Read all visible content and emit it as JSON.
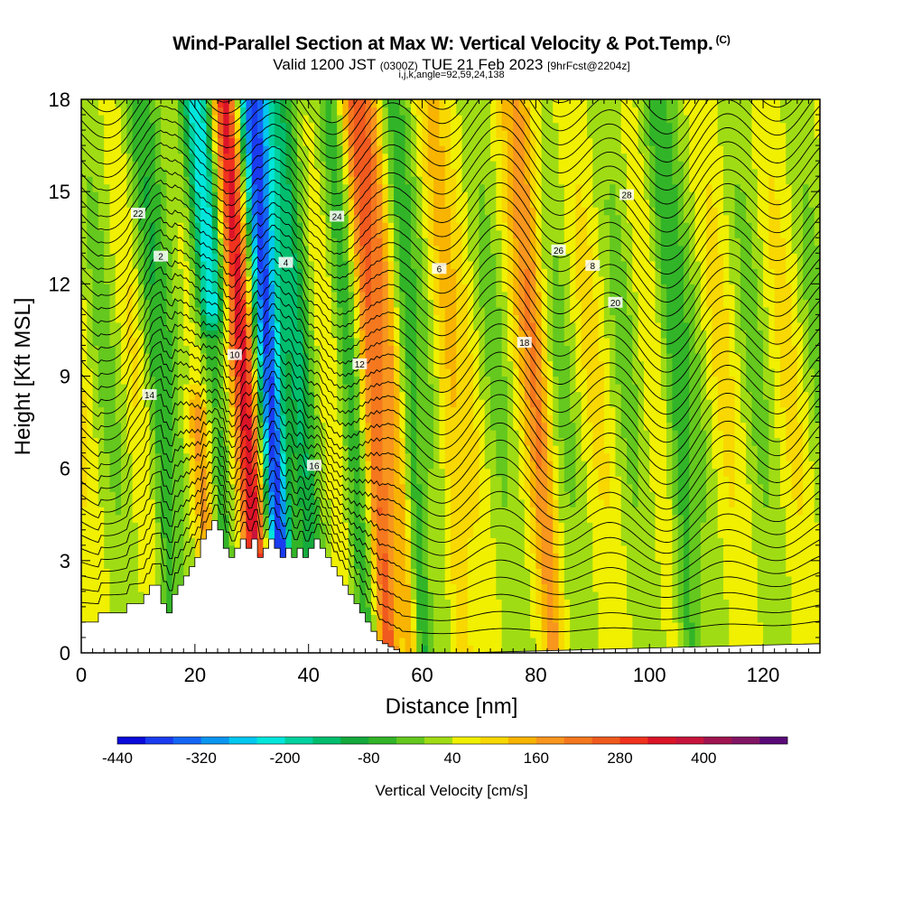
{
  "header": {
    "title": "Wind-Parallel Section at Max W: Vertical Velocity & Pot.Temp.",
    "title_suffix": "(C)",
    "subtitle_valid": "Valid 1200 JST",
    "subtitle_utc": "(0300Z)",
    "subtitle_date": "TUE 21 Feb 2023",
    "subtitle_fcst": "[9hrFcst@2204z]",
    "indices": "i,j,k,angle=92,59,24,138"
  },
  "colorbar": {
    "label": "Vertical Velocity [cm/s]",
    "tick_labels": [
      "-440",
      "-320",
      "-200",
      "-80",
      "40",
      "160",
      "280",
      "400"
    ],
    "colors": [
      "#0a0adc",
      "#1a3cf0",
      "#1466f5",
      "#0a96f0",
      "#00c8f0",
      "#00e6dc",
      "#00d2a0",
      "#00be6e",
      "#14aa3c",
      "#32b428",
      "#64c81e",
      "#a0dc14",
      "#f0f000",
      "#f8d800",
      "#f8b400",
      "#f8961e",
      "#f5781e",
      "#f05a1e",
      "#f0321e",
      "#dc1428",
      "#c8143c",
      "#a01450",
      "#821464",
      "#5a0a78"
    ]
  },
  "chart_data": {
    "type": "heatmap",
    "title": "Wind-Parallel Section at Max W: Vertical Velocity & Pot.Temp.",
    "xlabel": "Distance [nm]",
    "ylabel": "Height [Kft MSL]",
    "xlim": [
      0,
      130
    ],
    "ylim": [
      0,
      18
    ],
    "x_ticks": [
      "0",
      "20",
      "40",
      "60",
      "80",
      "100",
      "120"
    ],
    "y_ticks": [
      "0",
      "3",
      "6",
      "9",
      "12",
      "15",
      "18"
    ],
    "fill_variable": "Vertical Velocity [cm/s]",
    "fill_range": [
      -440,
      520
    ],
    "background_value": 40,
    "updraft_bands": [
      {
        "x": 28.5,
        "value": 400,
        "top": 18
      },
      {
        "x": 24.0,
        "value": 220,
        "top": 10
      },
      {
        "x": 20.0,
        "value": 160,
        "top": 8
      },
      {
        "x": 51.0,
        "value": 280,
        "top": 18
      },
      {
        "x": 55.0,
        "value": 160,
        "top": 18
      },
      {
        "x": 80.0,
        "value": 160,
        "top": 18
      },
      {
        "x": 64.0,
        "value": 120,
        "top": 18
      }
    ],
    "downdraft_bands": [
      {
        "x": 33.0,
        "value": -440,
        "top": 18
      },
      {
        "x": 23.5,
        "value": -260,
        "top": 18
      },
      {
        "x": 38.0,
        "value": -80,
        "top": 18
      },
      {
        "x": 47.0,
        "value": -80,
        "top": 18
      },
      {
        "x": 57.0,
        "value": -120,
        "top": 18
      },
      {
        "x": 104.0,
        "value": -60,
        "top": 18
      },
      {
        "x": 13.0,
        "value": -60,
        "top": 18
      }
    ],
    "contour_variable": "Potential Temperature [C]",
    "contour_levels": [
      "2",
      "4",
      "6",
      "8",
      "10",
      "12",
      "14",
      "16",
      "18",
      "20",
      "22",
      "24",
      "26",
      "28"
    ],
    "terrain_x": [
      0,
      3,
      3,
      8,
      8,
      11,
      11,
      12,
      12,
      14,
      14,
      15,
      15,
      16,
      16,
      17,
      17,
      18,
      18,
      19,
      19,
      20,
      20,
      21,
      21,
      22,
      22,
      23,
      23,
      24,
      24,
      25,
      25,
      26,
      26,
      27,
      27,
      28,
      28,
      29,
      29,
      30,
      30,
      31,
      31,
      32,
      32,
      33,
      33,
      34,
      34,
      35,
      35,
      36,
      36,
      37,
      37,
      38,
      38,
      39,
      39,
      40,
      40,
      41,
      41,
      42,
      42,
      43,
      43,
      44,
      44,
      45,
      45,
      46,
      46,
      47,
      47,
      48,
      48,
      49,
      49,
      50,
      50,
      51,
      51,
      52,
      52,
      53,
      53,
      54,
      54,
      55,
      55,
      56,
      56,
      57,
      57,
      58,
      58,
      59,
      59,
      60,
      60,
      61,
      61,
      62,
      62,
      63,
      63,
      64,
      64,
      65,
      65,
      66,
      66,
      67,
      67,
      130
    ],
    "terrain_y": [
      1.0,
      1.0,
      1.3,
      1.3,
      1.6,
      1.6,
      1.9,
      1.9,
      2.2,
      2.2,
      1.6,
      1.6,
      1.3,
      1.3,
      1.9,
      1.9,
      2.2,
      2.2,
      2.5,
      2.5,
      2.8,
      2.8,
      3.1,
      3.1,
      3.7,
      3.7,
      4.0,
      4.0,
      4.3,
      4.3,
      4.0,
      4.0,
      3.4,
      3.4,
      3.1,
      3.1,
      3.4,
      3.4,
      3.7,
      3.7,
      3.4,
      3.4,
      3.7,
      3.7,
      3.1,
      3.1,
      3.4,
      3.4,
      3.7,
      3.7,
      3.4,
      3.4,
      3.1,
      3.1,
      3.4,
      3.4,
      3.1,
      3.1,
      3.4,
      3.4,
      3.1,
      3.1,
      3.4,
      3.4,
      3.7,
      3.7,
      3.4,
      3.4,
      3.1,
      3.1,
      2.8,
      2.8,
      2.5,
      2.5,
      2.2,
      2.2,
      1.9,
      1.9,
      1.6,
      1.6,
      1.3,
      1.3,
      1.0,
      1.0,
      0.7,
      0.7,
      0.4,
      0.4,
      0.3,
      0.3,
      0.2,
      0.2,
      0.1,
      0.1,
      0.0,
      0.0,
      0.0,
      0.0,
      0.0,
      0.0,
      0.0,
      0.0,
      0.0,
      0.0,
      0.0,
      0.0,
      0.0,
      0.0,
      0.0,
      0.0,
      0.0,
      0.0,
      0.0,
      0.0,
      0.0,
      0.0,
      0.0,
      0.3
    ]
  }
}
